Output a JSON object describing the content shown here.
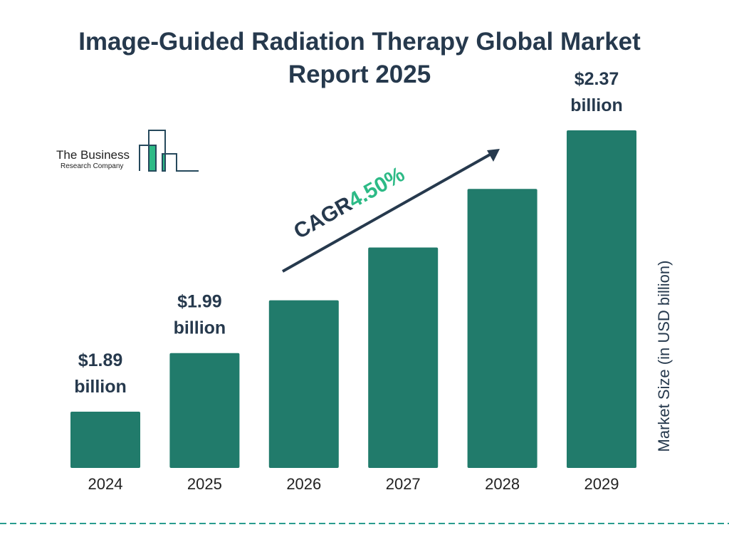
{
  "title": "Image-Guided Radiation Therapy Global Market Report 2025",
  "logo": {
    "line1": "The Business",
    "line2": "Research Company"
  },
  "colors": {
    "bar": "#217b6b",
    "text": "#26394d",
    "accent": "#2dba86",
    "dash": "#2a9d8f"
  },
  "chart_data": {
    "type": "bar",
    "title": "Image-Guided Radiation Therapy Global Market Report 2025",
    "categories": [
      "2024",
      "2025",
      "2026",
      "2027",
      "2028",
      "2029"
    ],
    "values": [
      1.89,
      1.99,
      2.08,
      2.17,
      2.27,
      2.37
    ],
    "value_labels": [
      {
        "category": "2024",
        "line1": "$1.89",
        "line2": "billion"
      },
      {
        "category": "2025",
        "line1": "$1.99",
        "line2": "billion"
      },
      {
        "category": "2029",
        "line1": "$2.37",
        "line2": "billion"
      }
    ],
    "ylabel": "Market Size (in USD billion)",
    "xlabel": "",
    "annotation": {
      "label": "CAGR",
      "value": "4.50%"
    },
    "grid": false
  }
}
